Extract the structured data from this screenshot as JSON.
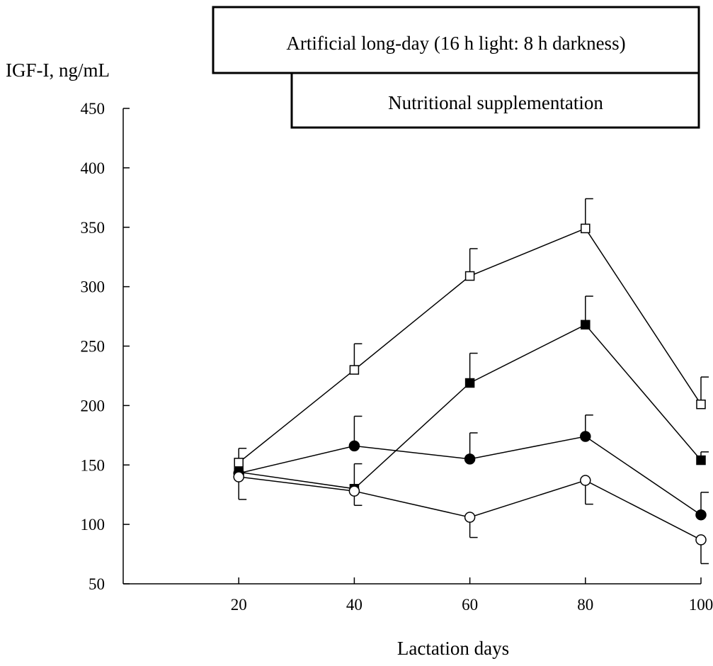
{
  "chart_data": {
    "type": "line",
    "ylabel": "IGF-I, ng/mL",
    "xlabel": "Lactation days",
    "x": [
      20,
      40,
      60,
      80,
      100
    ],
    "xlim": [
      0,
      100
    ],
    "ylim": [
      50,
      450
    ],
    "yticks": [
      "50",
      "100",
      "150",
      "200",
      "250",
      "300",
      "350",
      "400",
      "450"
    ],
    "xticks": [
      "20",
      "40",
      "60",
      "80",
      "100"
    ],
    "legend": "none",
    "grid": false,
    "annotations": [
      {
        "id": "long_day",
        "text": "Artificial long-day (16 h light: 8 h darkness)",
        "x_from": 0,
        "x_to": 100
      },
      {
        "id": "supplement",
        "text": "Nutritional supplementation",
        "x_from": 40,
        "x_to": 100
      }
    ],
    "series": [
      {
        "marker": "open-square",
        "values": [
          152,
          230,
          309,
          349,
          201
        ],
        "error": [
          12,
          22,
          23,
          25,
          23
        ]
      },
      {
        "marker": "filled-square",
        "values": [
          144,
          130,
          219,
          268,
          154
        ],
        "error": [
          0,
          21,
          25,
          24,
          7
        ]
      },
      {
        "marker": "filled-circle",
        "values": [
          143,
          166,
          155,
          174,
          108
        ],
        "error": [
          22,
          25,
          22,
          18,
          19
        ]
      },
      {
        "marker": "open-circle",
        "values": [
          140,
          128,
          106,
          137,
          87
        ],
        "error": [
          0,
          12,
          17,
          20,
          20
        ]
      }
    ]
  }
}
